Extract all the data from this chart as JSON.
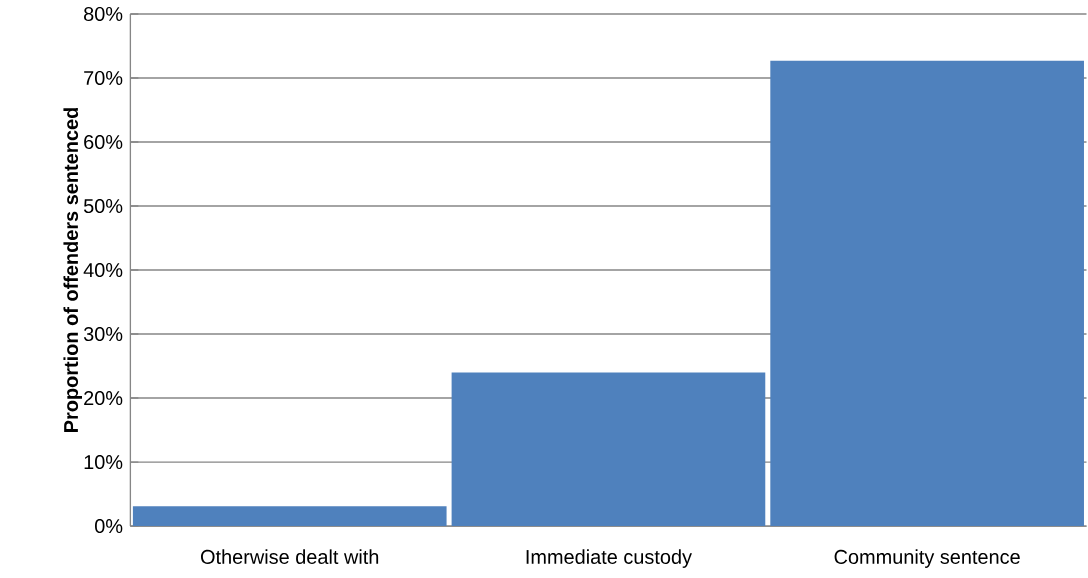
{
  "chart_data": {
    "type": "bar",
    "ylabel": "Proportion of offenders sentenced",
    "categories": [
      "Otherwise dealt with",
      "Immediate custody",
      "Community sentence"
    ],
    "values": [
      3.1,
      24,
      72.7
    ],
    "color": "#4f81bd",
    "grid": "y",
    "ylim": [
      0,
      80
    ],
    "yticks": [
      {
        "value": 0,
        "label": "0%"
      },
      {
        "value": 10,
        "label": "10%"
      },
      {
        "value": 20,
        "label": "20%"
      },
      {
        "value": 30,
        "label": "30%"
      },
      {
        "value": 40,
        "label": "40%"
      },
      {
        "value": 50,
        "label": "50%"
      },
      {
        "value": 60,
        "label": "60%"
      },
      {
        "value": 70,
        "label": "70%"
      },
      {
        "value": 80,
        "label": "80%"
      }
    ]
  }
}
